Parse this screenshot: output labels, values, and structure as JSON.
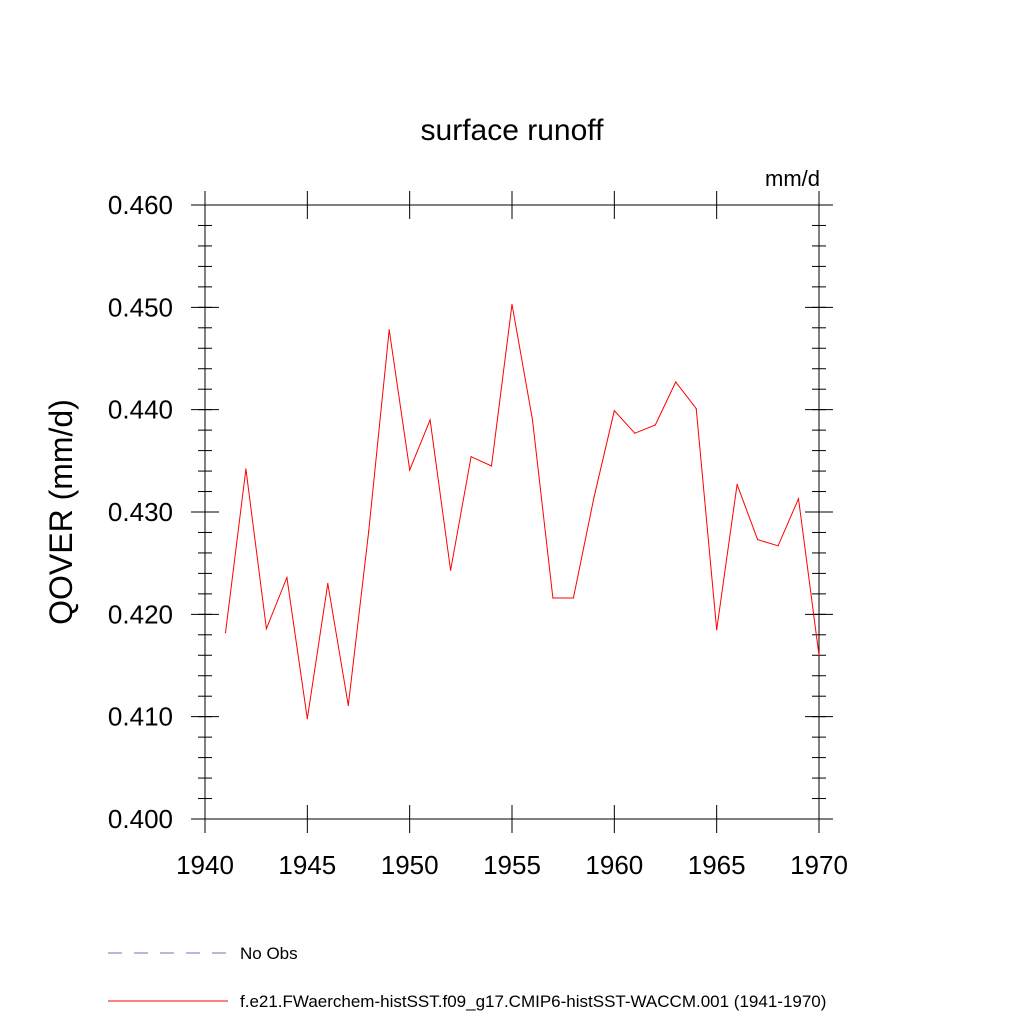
{
  "chart_data": {
    "type": "line",
    "title": "surface runoff",
    "units_label": "mm/d",
    "ylabel": "QOVER  (mm/d)",
    "xlabel": "",
    "xlim": [
      1940,
      1970
    ],
    "ylim": [
      0.4,
      0.46
    ],
    "x_ticks": [
      "1940",
      "1945",
      "1950",
      "1955",
      "1960",
      "1965",
      "1970"
    ],
    "y_ticks": [
      "0.400",
      "0.410",
      "0.420",
      "0.430",
      "0.440",
      "0.450",
      "0.460"
    ],
    "grid": false,
    "series": [
      {
        "name": "f.e21.FWaerchem-histSST.f09_g17.CMIP6-histSST-WACCM.001 (1941-1970)",
        "color": "#ff0000",
        "x": [
          1941,
          1942,
          1943,
          1944,
          1945,
          1946,
          1947,
          1948,
          1949,
          1950,
          1951,
          1952,
          1953,
          1954,
          1955,
          1956,
          1957,
          1958,
          1959,
          1960,
          1961,
          1962,
          1963,
          1964,
          1965,
          1966,
          1967,
          1968,
          1969,
          1970
        ],
        "y": [
          0.4182,
          0.4342,
          0.4186,
          0.4236,
          0.4098,
          0.423,
          0.4111,
          0.4281,
          0.4478,
          0.4341,
          0.439,
          0.4243,
          0.4354,
          0.4345,
          0.4503,
          0.439,
          0.4216,
          0.4216,
          0.4314,
          0.4399,
          0.4377,
          0.4385,
          0.4427,
          0.4401,
          0.4185,
          0.4327,
          0.4273,
          0.4267,
          0.4313,
          0.416
        ]
      }
    ],
    "legend": {
      "placement": "bottom",
      "entries": [
        {
          "label": "No Obs",
          "style": "dashed",
          "color": "#7b6fb8"
        },
        {
          "label": "f.e21.FWaerchem-histSST.f09_g17.CMIP6-histSST-WACCM.001 (1941-1970)",
          "style": "solid",
          "color": "#ff0000"
        }
      ]
    }
  }
}
